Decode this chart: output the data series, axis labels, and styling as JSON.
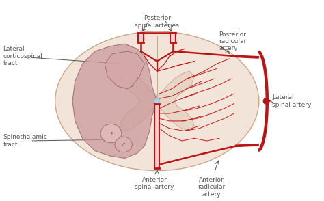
{
  "bg_color": "#ffffff",
  "spinal_cord_color": "#f2e4d8",
  "gray_matter_color": "#e8d5c5",
  "affected_area_color": "#c9959a",
  "affected_area_alpha": 0.7,
  "artery_color": "#bb1414",
  "artery_lw": 2.2,
  "central_canal_color": "#a8d8ea",
  "text_color": "#555555",
  "label_fs": 6.5,
  "labels": {
    "posterior_spinal_arteries": "Posterior\nspinal arteries",
    "posterior_radicular_artery": "Posterior\nradicular\nartery",
    "lateral_spinal_artery": "Lateral\nspinal artery",
    "anterior_spinal_artery": "Anterior\nspinal artery",
    "anterior_radicular_artery": "Anterior\nradicular\nartery",
    "lateral_corticospinal": "Lateral\ncorticospinal\ntract",
    "spinothalamic": "Spinothalamic\ntract",
    "S": "s",
    "C": "c"
  },
  "figsize": [
    4.74,
    2.94
  ],
  "dpi": 100
}
